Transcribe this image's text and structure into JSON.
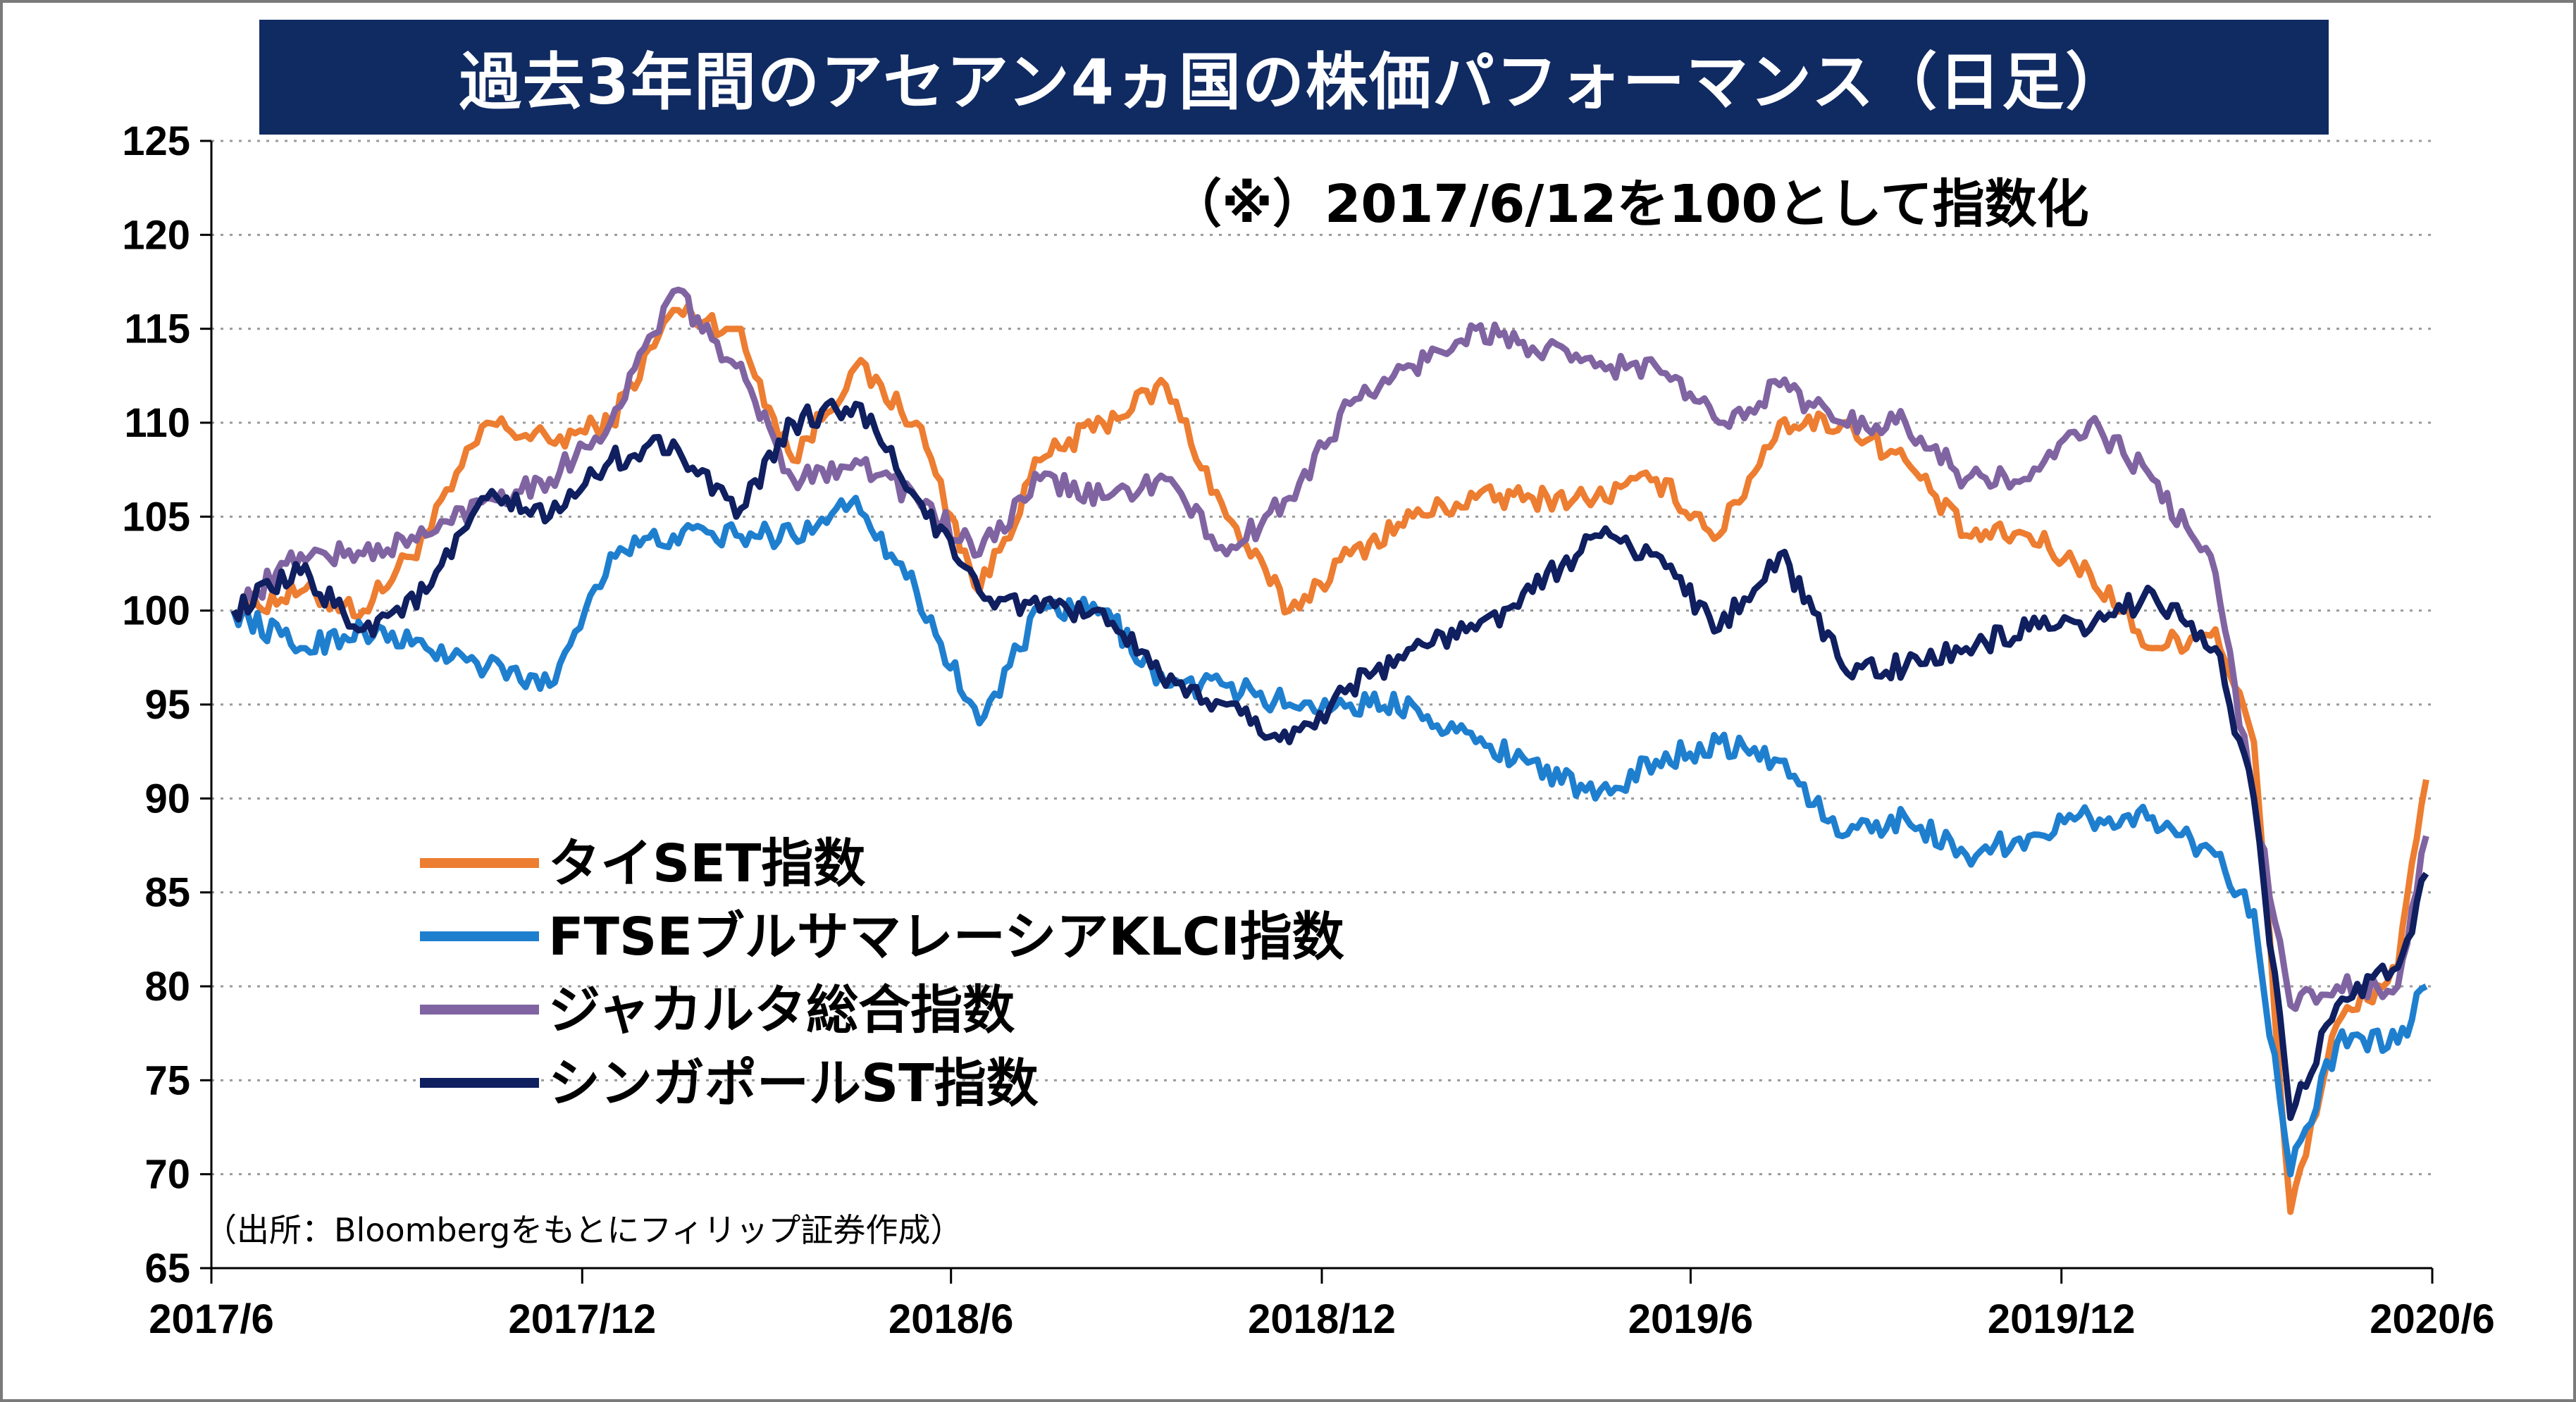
{
  "chart_data": {
    "type": "line",
    "title": "過去3年間のアセアン4ヵ国の株価パフォーマンス（日足）",
    "note": "（※）2017/6/12を100として指数化",
    "source": "（出所：Bloombergをもとにフィリップ証券作成）",
    "xlabel": "",
    "ylabel": "",
    "ylim": [
      65,
      125
    ],
    "yticks": [
      "125",
      "120",
      "115",
      "110",
      "105",
      "100",
      "95",
      "90",
      "85",
      "80",
      "75",
      "70",
      "65"
    ],
    "xticks": [
      "2017/6",
      "2017/12",
      "2018/6",
      "2018/12",
      "2019/6",
      "2019/12",
      "2020/6"
    ],
    "xtick_dates": [
      "2017-06-01",
      "2017-12-01",
      "2018-06-01",
      "2018-12-01",
      "2019-06-01",
      "2019-12-01",
      "2020-06-01"
    ],
    "grid": true,
    "legend_position": "left-center",
    "x": [
      "2017-06-12",
      "2017-07-15",
      "2017-08-15",
      "2017-09-15",
      "2017-10-15",
      "2017-11-15",
      "2017-12-15",
      "2018-01-15",
      "2018-02-15",
      "2018-03-15",
      "2018-04-15",
      "2018-05-15",
      "2018-06-15",
      "2018-07-15",
      "2018-08-15",
      "2018-09-15",
      "2018-10-15",
      "2018-11-15",
      "2018-12-15",
      "2019-01-15",
      "2019-02-15",
      "2019-03-15",
      "2019-04-15",
      "2019-05-15",
      "2019-06-15",
      "2019-07-15",
      "2019-08-15",
      "2019-09-15",
      "2019-10-15",
      "2019-11-15",
      "2019-12-15",
      "2020-01-15",
      "2020-02-15",
      "2020-03-05",
      "2020-03-23",
      "2020-04-15",
      "2020-05-15",
      "2020-05-29"
    ],
    "series": [
      {
        "name": "タイSET指数",
        "color": "#ed7d31",
        "values": [
          100,
          101,
          100,
          104,
          110,
          109,
          110,
          116,
          115,
          108,
          113,
          110,
          101,
          108,
          110,
          112,
          105,
          100,
          103,
          105,
          106,
          106,
          106,
          107,
          104,
          110,
          110,
          108,
          104,
          104,
          102,
          98,
          99,
          93,
          68,
          78,
          81,
          91
        ]
      },
      {
        "name": "FTSEブルサマレーシアKLCI指数",
        "color": "#1f7fcf",
        "values": [
          100,
          98,
          99,
          98,
          97,
          96,
          103,
          104,
          104,
          104,
          106,
          101,
          94,
          100,
          100,
          96,
          96,
          95,
          95,
          95,
          93,
          92,
          90,
          92,
          93,
          92,
          88,
          89,
          87,
          88,
          89,
          89,
          87,
          84,
          70,
          77,
          77,
          80
        ]
      },
      {
        "name": "ジャカルタ総合指数",
        "color": "#8064a2",
        "values": [
          100,
          103,
          103,
          104,
          106,
          107,
          110,
          117,
          113,
          107,
          108,
          106,
          103,
          107,
          106,
          107,
          103,
          106,
          111,
          113,
          115,
          114,
          113,
          113,
          110,
          112,
          110,
          110,
          107,
          107,
          110,
          107,
          102,
          90,
          79,
          80,
          80,
          88
        ]
      },
      {
        "name": "シンガポールST指数",
        "color": "#0f1f5f",
        "values": [
          100,
          102,
          99,
          101,
          106,
          105,
          108,
          109,
          105,
          110,
          111,
          106,
          101,
          100,
          100,
          96,
          95,
          93,
          96,
          98,
          99,
          101,
          104,
          103,
          99,
          103,
          97,
          97,
          98,
          99,
          99,
          101,
          98,
          90,
          73,
          79,
          81,
          86
        ]
      }
    ]
  }
}
